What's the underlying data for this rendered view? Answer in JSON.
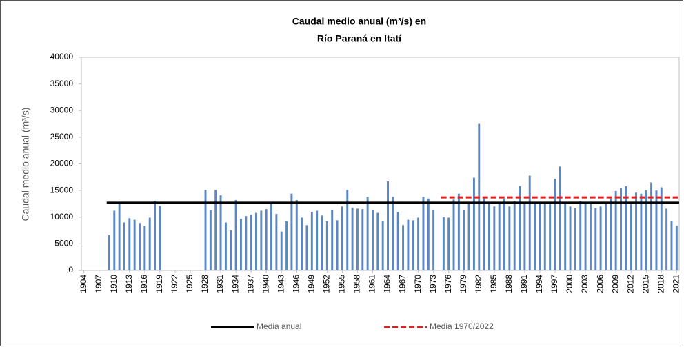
{
  "chart_data": {
    "type": "bar",
    "title": [
      "Caudal medio anual (m³/s) en",
      "Río Paraná en Itatí"
    ],
    "ylabel": "Caudal medio anual (m³/s)",
    "color": "#5b87c0",
    "x": [
      1904,
      1905,
      1906,
      1907,
      1908,
      1909,
      1910,
      1911,
      1912,
      1913,
      1914,
      1915,
      1916,
      1917,
      1918,
      1919,
      1920,
      1921,
      1922,
      1923,
      1924,
      1925,
      1926,
      1927,
      1928,
      1929,
      1930,
      1931,
      1932,
      1933,
      1934,
      1935,
      1936,
      1937,
      1938,
      1939,
      1940,
      1941,
      1942,
      1943,
      1944,
      1945,
      1946,
      1947,
      1948,
      1949,
      1950,
      1951,
      1952,
      1953,
      1954,
      1955,
      1956,
      1957,
      1958,
      1959,
      1960,
      1961,
      1962,
      1963,
      1964,
      1965,
      1966,
      1967,
      1968,
      1969,
      1970,
      1971,
      1972,
      1973,
      1974,
      1975,
      1976,
      1977,
      1978,
      1979,
      1980,
      1981,
      1982,
      1983,
      1984,
      1985,
      1986,
      1987,
      1988,
      1989,
      1990,
      1991,
      1992,
      1993,
      1994,
      1995,
      1996,
      1997,
      1998,
      1999,
      2000,
      2001,
      2002,
      2003,
      2004,
      2005,
      2006,
      2007,
      2008,
      2009,
      2010,
      2011,
      2012,
      2013,
      2014,
      2015,
      2016,
      2017,
      2018,
      2019,
      2020,
      2021
    ],
    "values": [
      null,
      null,
      null,
      null,
      null,
      6600,
      11200,
      12600,
      9000,
      9800,
      9500,
      8900,
      8300,
      9900,
      13000,
      12100,
      null,
      null,
      null,
      null,
      null,
      null,
      null,
      null,
      15100,
      11300,
      15100,
      14100,
      9000,
      7500,
      13200,
      9700,
      10200,
      10500,
      10800,
      11200,
      11500,
      12500,
      10600,
      7300,
      9200,
      14400,
      13200,
      9900,
      8500,
      11000,
      11200,
      10300,
      9200,
      11400,
      9400,
      12000,
      15100,
      11800,
      11600,
      11500,
      13800,
      11400,
      10800,
      9300,
      16700,
      13800,
      11000,
      8500,
      9500,
      9400,
      9900,
      13800,
      13500,
      11400,
      null,
      10000,
      9900,
      13300,
      14400,
      11400,
      12600,
      17400,
      27500,
      13800,
      12800,
      12000,
      12800,
      13500,
      12000,
      13000,
      15800,
      12500,
      17800,
      12800,
      12600,
      12800,
      12400,
      17200,
      19500,
      12800,
      12000,
      11700,
      13000,
      12600,
      12600,
      11700,
      12000,
      12500,
      13500,
      14900,
      15500,
      15800,
      12400,
      14600,
      14400,
      15000,
      16500,
      15000,
      15600,
      11600,
      9300,
      8400
    ],
    "xlim": [
      1903.5,
      2021.5
    ],
    "xticks": [
      1904,
      1907,
      1910,
      1913,
      1916,
      1919,
      1922,
      1925,
      1928,
      1931,
      1934,
      1937,
      1940,
      1943,
      1946,
      1949,
      1952,
      1955,
      1958,
      1961,
      1964,
      1967,
      1970,
      1973,
      1976,
      1979,
      1982,
      1985,
      1988,
      1991,
      1994,
      1997,
      2000,
      2003,
      2006,
      2009,
      2012,
      2015,
      2018,
      2021
    ],
    "ylim": [
      0,
      40000
    ],
    "yticks": [
      0,
      5000,
      10000,
      15000,
      20000,
      25000,
      30000,
      35000,
      40000
    ],
    "grid": false,
    "reference_lines": [
      {
        "name": "Media anual",
        "value": 12700,
        "color": "#000000",
        "dashed": false,
        "x_range": [
          1909,
          2021
        ]
      },
      {
        "name": "Media 1970/2022",
        "value": 13700,
        "color": "#e02020",
        "dashed": true,
        "x_range": [
          1975,
          2021
        ]
      }
    ],
    "legend": "bottom"
  }
}
